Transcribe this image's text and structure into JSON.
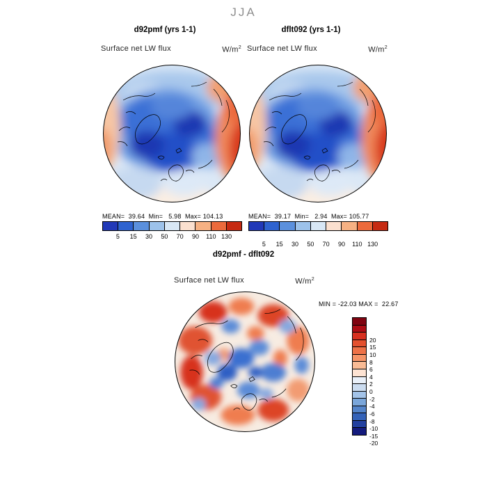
{
  "header": {
    "season": "JJA"
  },
  "units": {
    "base": "W/m",
    "exp": "2"
  },
  "panels": {
    "left": {
      "title": "d92pmf (yrs 1-1)",
      "field": "Surface net LW flux",
      "stats": "MEAN=  39.64  Min=   5.98  Max= 104.13"
    },
    "right": {
      "title": "dflt092 (yrs 1-1)",
      "field": "Surface net LW flux",
      "stats": "MEAN=  39.17  Min=   2.94  Max= 105.77"
    },
    "diff": {
      "title": "d92pmf - dflt092",
      "field": "Surface net LW flux",
      "minmax": "MIN = -22.03 MAX =  22.67"
    }
  },
  "colorbar_top": {
    "ticks": [
      "5",
      "15",
      "30",
      "50",
      "70",
      "90",
      "110",
      "130"
    ],
    "colors": [
      "#2239b8",
      "#2f63d0",
      "#5b90dd",
      "#9dc2ea",
      "#d8e7f5",
      "#fbe0cf",
      "#f6b183",
      "#ec6a3c",
      "#c62a12"
    ]
  },
  "colorbar_diff": {
    "ticks": [
      "20",
      "15",
      "10",
      "8",
      "6",
      "4",
      "2",
      "0",
      "-2",
      "-4",
      "-6",
      "-8",
      "-10",
      "-15",
      "-20"
    ],
    "colors": [
      "#7f0310",
      "#ad0c14",
      "#d7301f",
      "#e4512f",
      "#ee7248",
      "#f59468",
      "#f9bb95",
      "#fde3d3",
      "#e9f0f9",
      "#cbdcf0",
      "#a3c3e8",
      "#7aa6da",
      "#5585ca",
      "#3563b8",
      "#22409f",
      "#141b7d"
    ]
  },
  "chart_data": [
    {
      "type": "heatmap",
      "projection": "north polar stereographic",
      "season": "JJA",
      "title": "d92pmf (yrs 1-1)",
      "field": "Surface net LW flux",
      "units": "W/m^2",
      "stats": {
        "mean": 39.64,
        "min": 5.98,
        "max": 104.13
      },
      "contour_levels": [
        5,
        15,
        30,
        50,
        70,
        90,
        110,
        130
      ],
      "palette": [
        "#2239b8",
        "#2f63d0",
        "#5b90dd",
        "#9dc2ea",
        "#d8e7f5",
        "#fbe0cf",
        "#f6b183",
        "#ec6a3c",
        "#c62a12"
      ],
      "legend_position": "bottom"
    },
    {
      "type": "heatmap",
      "projection": "north polar stereographic",
      "season": "JJA",
      "title": "dflt092 (yrs 1-1)",
      "field": "Surface net LW flux",
      "units": "W/m^2",
      "stats": {
        "mean": 39.17,
        "min": 2.94,
        "max": 105.77
      },
      "contour_levels": [
        5,
        15,
        30,
        50,
        70,
        90,
        110,
        130
      ],
      "palette": [
        "#2239b8",
        "#2f63d0",
        "#5b90dd",
        "#9dc2ea",
        "#d8e7f5",
        "#fbe0cf",
        "#f6b183",
        "#ec6a3c",
        "#c62a12"
      ],
      "legend_position": "bottom"
    },
    {
      "type": "heatmap",
      "projection": "north polar stereographic",
      "season": "JJA",
      "title": "d92pmf - dflt092",
      "field": "Surface net LW flux",
      "units": "W/m^2",
      "stats": {
        "min": -22.03,
        "max": 22.67
      },
      "contour_levels": [
        -20,
        -15,
        -10,
        -8,
        -6,
        -4,
        -2,
        0,
        2,
        4,
        6,
        8,
        10,
        15,
        20
      ],
      "palette": [
        "#141b7d",
        "#22409f",
        "#3563b8",
        "#5585ca",
        "#7aa6da",
        "#a3c3e8",
        "#cbdcf0",
        "#e9f0f9",
        "#fde3d3",
        "#f9bb95",
        "#f59468",
        "#ee7248",
        "#e4512f",
        "#d7301f",
        "#ad0c14",
        "#7f0310"
      ],
      "legend_position": "right"
    }
  ]
}
